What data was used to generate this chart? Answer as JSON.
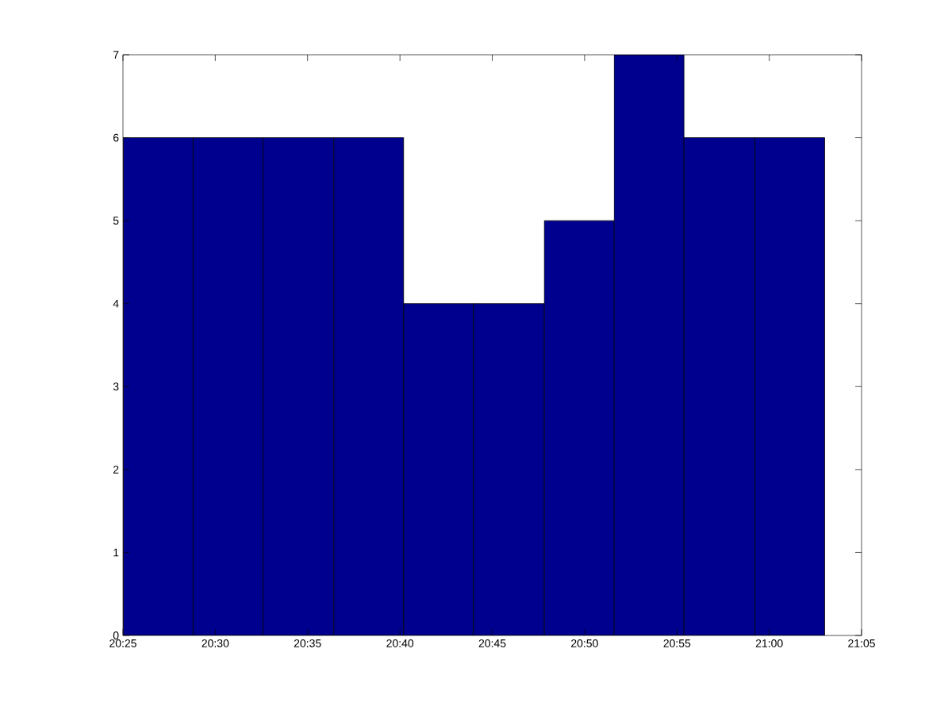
{
  "chart_data": {
    "type": "histogram",
    "bins": [
      20.417,
      20.48,
      20.543,
      20.607,
      20.67,
      20.733,
      20.797,
      20.86,
      20.923,
      20.987,
      21.05
    ],
    "values": [
      6,
      6,
      6,
      6,
      4,
      4,
      5,
      7,
      6,
      6
    ],
    "color": "#00008f",
    "xlim": [
      20.4167,
      21.0833
    ],
    "xticks": [
      {
        "value": 20.4167,
        "label": "20:25"
      },
      {
        "value": 20.5,
        "label": "20:30"
      },
      {
        "value": 20.5833,
        "label": "20:35"
      },
      {
        "value": 20.6667,
        "label": "20:40"
      },
      {
        "value": 20.75,
        "label": "20:45"
      },
      {
        "value": 20.8333,
        "label": "20:50"
      },
      {
        "value": 20.9167,
        "label": "20:55"
      },
      {
        "value": 21.0,
        "label": "21:00"
      },
      {
        "value": 21.0833,
        "label": "21:05"
      }
    ],
    "ylim": [
      0,
      7
    ],
    "yticks": [
      0,
      1,
      2,
      3,
      4,
      5,
      6,
      7
    ]
  }
}
